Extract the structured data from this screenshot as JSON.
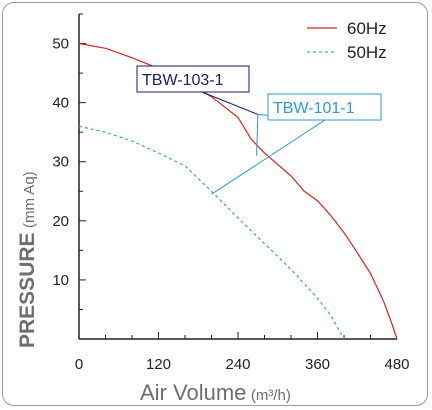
{
  "chart_data": {
    "type": "line",
    "xlabel_main": "Air Volume",
    "xlabel_unit": "(m³/h)",
    "ylabel_main": "PRESSURE",
    "ylabel_unit": "(mm Aq)",
    "xlim": [
      0,
      480
    ],
    "ylim": [
      0,
      55
    ],
    "x_ticks": [
      0,
      120,
      240,
      360,
      480
    ],
    "y_ticks": [
      10,
      20,
      30,
      40,
      50
    ],
    "grid": false,
    "legend_position": "top-right",
    "series": [
      {
        "name": "60Hz",
        "color": "#e02020",
        "dash": "solid",
        "x": [
          0,
          40,
          80,
          120,
          160,
          200,
          240,
          260,
          280,
          320,
          340,
          360,
          380,
          400,
          420,
          440,
          460,
          470,
          480
        ],
        "y": [
          50,
          49.2,
          47.6,
          45.8,
          43.6,
          41.0,
          37.5,
          33.8,
          31.5,
          27.6,
          25.0,
          23.4,
          20.9,
          18.0,
          14.6,
          11.1,
          6.3,
          3.3,
          0
        ]
      },
      {
        "name": "50Hz",
        "color": "#3aa0d8",
        "dash": "dashed",
        "x": [
          0,
          40,
          80,
          120,
          160,
          200,
          240,
          270,
          300,
          330,
          360,
          380,
          400
        ],
        "y": [
          36,
          35,
          33.5,
          31.5,
          29.3,
          25.0,
          20.5,
          17.2,
          14.0,
          10.6,
          6.9,
          4.0,
          0
        ]
      }
    ],
    "annotations": [
      {
        "label": "TBW-103-1",
        "color": "#1a1a6e",
        "point_x": 270,
        "point_y": 38,
        "targets": [
          [
            270,
            38
          ]
        ]
      },
      {
        "label": "TBW-101-1",
        "color": "#2a9ad8",
        "point_x": 270,
        "point_y": 38,
        "targets": [
          [
            270,
            38
          ],
          [
            200,
            24.5
          ]
        ]
      }
    ]
  }
}
